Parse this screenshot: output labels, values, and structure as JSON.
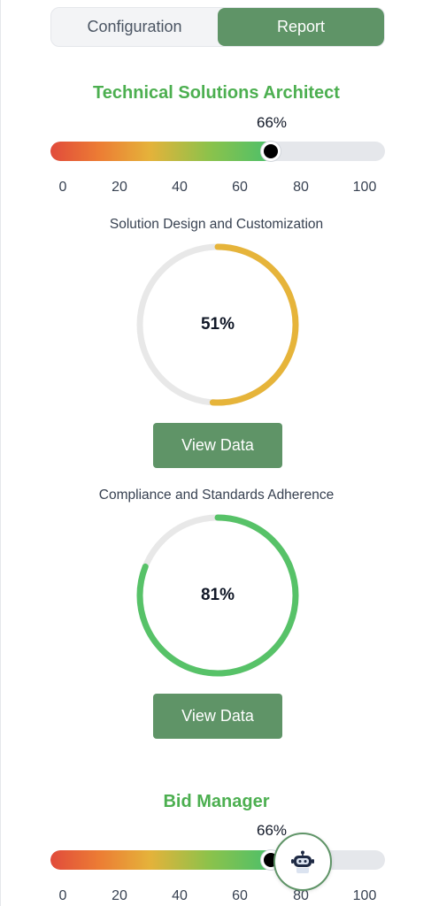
{
  "tabs": [
    {
      "label": "Configuration",
      "active": false
    },
    {
      "label": "Report",
      "active": true
    }
  ],
  "roles": [
    {
      "title": "Technical Solutions Architect",
      "score_label": "66%",
      "score": 66,
      "ticks": [
        "0",
        "20",
        "40",
        "60",
        "80",
        "100"
      ]
    },
    {
      "title": "Bid Manager",
      "score_label": "66%",
      "score": 66,
      "ticks": [
        "0",
        "20",
        "40",
        "60",
        "80",
        "100"
      ]
    }
  ],
  "metrics": [
    {
      "title": "Solution Design and Customization",
      "value_label": "51%",
      "value": 51,
      "color": "#e6b43a",
      "button": "View Data"
    },
    {
      "title": "Compliance and Standards Adherence",
      "value_label": "81%",
      "value": 81,
      "color": "#57c268",
      "button": "View Data"
    }
  ],
  "colors": {
    "accent": "#5f9467",
    "title_green": "#4caf50",
    "track": "#e8e8e8"
  },
  "chat_button": {
    "icon": "robot-icon"
  }
}
